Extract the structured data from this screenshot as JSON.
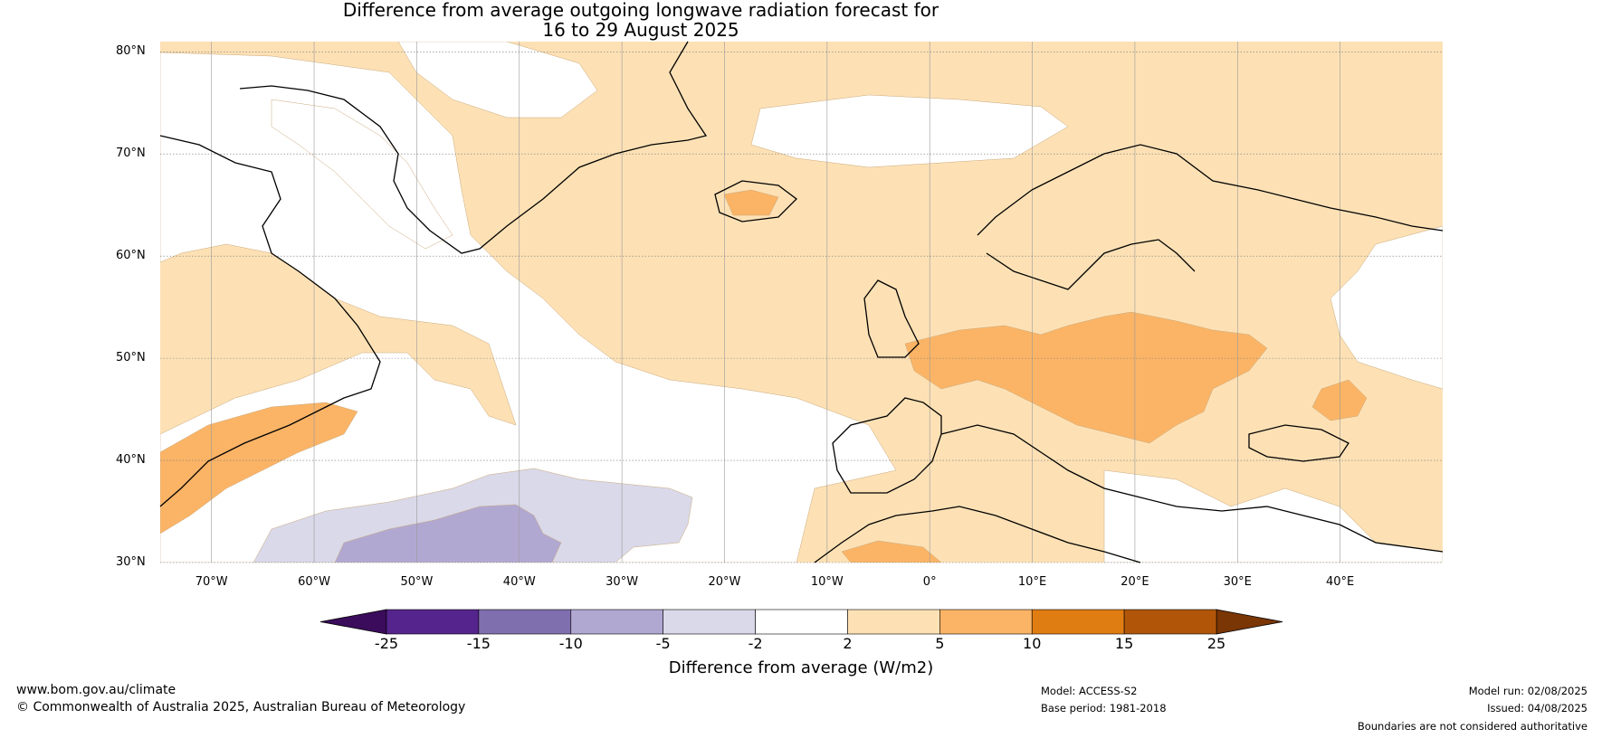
{
  "title": {
    "line1": "Difference from average outgoing longwave radiation forecast for",
    "line2": "16 to 29 August 2025"
  },
  "map": {
    "region": "North Atlantic and Europe",
    "lat_labels": [
      "80°N",
      "70°N",
      "60°N",
      "50°N",
      "40°N",
      "30°N"
    ],
    "lon_labels": [
      "70°W",
      "60°W",
      "50°W",
      "40°W",
      "30°W",
      "20°W",
      "10°W",
      "0°",
      "10°E",
      "20°E",
      "30°E",
      "40°E"
    ],
    "lon_range": [
      -75,
      50
    ],
    "lat_range": [
      30,
      81
    ],
    "anomaly_colors": {
      "pos_2_5": "#fde1b5",
      "pos_5_10": "#fbb466",
      "neg_2_5": "#d9d9ea",
      "neg_5_10": "#b1a8d2"
    }
  },
  "colorbar": {
    "ticks": [
      "-25",
      "-15",
      "-10",
      "-5",
      "-2",
      "2",
      "5",
      "10",
      "15",
      "25"
    ],
    "colors": [
      "#55248c",
      "#806faf",
      "#b1a8d2",
      "#d9d9ea",
      "#ffffff",
      "#fde1b5",
      "#fbb466",
      "#df7d12",
      "#b15608"
    ],
    "low_extend_color": "#3b0c5c",
    "high_extend_color": "#7a3604",
    "label": "Difference from average (W/m2)"
  },
  "footer": {
    "website": "www.bom.gov.au/climate",
    "copyright": "© Commonwealth of Australia 2025, Australian Bureau of Meteorology",
    "model": "Model: ACCESS-S2",
    "base_period": "Base period: 1981-2018",
    "model_run": "Model run: 02/08/2025",
    "issued": "Issued: 04/08/2025",
    "disclaimer": "Boundaries are not considered authoritative"
  }
}
